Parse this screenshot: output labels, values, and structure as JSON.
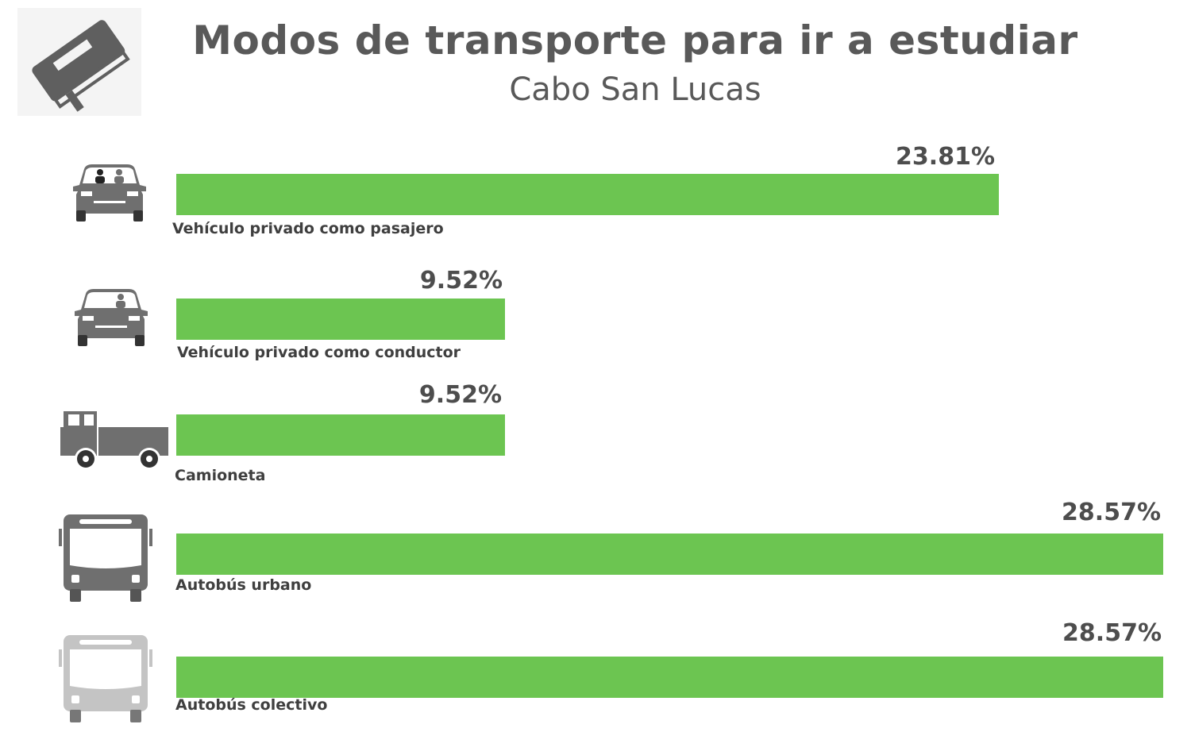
{
  "chart_data": {
    "type": "bar",
    "orientation": "horizontal",
    "title": "Modos de transporte para ir a estudiar",
    "subtitle": "Cabo San Lucas",
    "categories": [
      "Vehículo privado como pasajero",
      "Vehículo privado como conductor",
      "Camioneta",
      "Autobús urbano",
      "Autobús colectivo"
    ],
    "values": [
      23.81,
      9.52,
      9.52,
      28.57,
      28.57
    ],
    "value_labels": [
      "23.81%",
      "9.52%",
      "9.52%",
      "28.57%",
      "28.57%"
    ],
    "xlim": [
      0,
      28.57
    ],
    "grid": false,
    "legend": "none",
    "bar_color": "#6cc551"
  },
  "header_icon": "book-icon",
  "row_icons": [
    "car-passenger-icon",
    "car-driver-icon",
    "pickup-truck-icon",
    "bus-urban-icon",
    "bus-colectivo-icon"
  ],
  "colors": {
    "bar": "#6cc551",
    "icon_dark": "#6f6f6f",
    "icon_light": "#c4c4c4",
    "text": "#505050"
  }
}
